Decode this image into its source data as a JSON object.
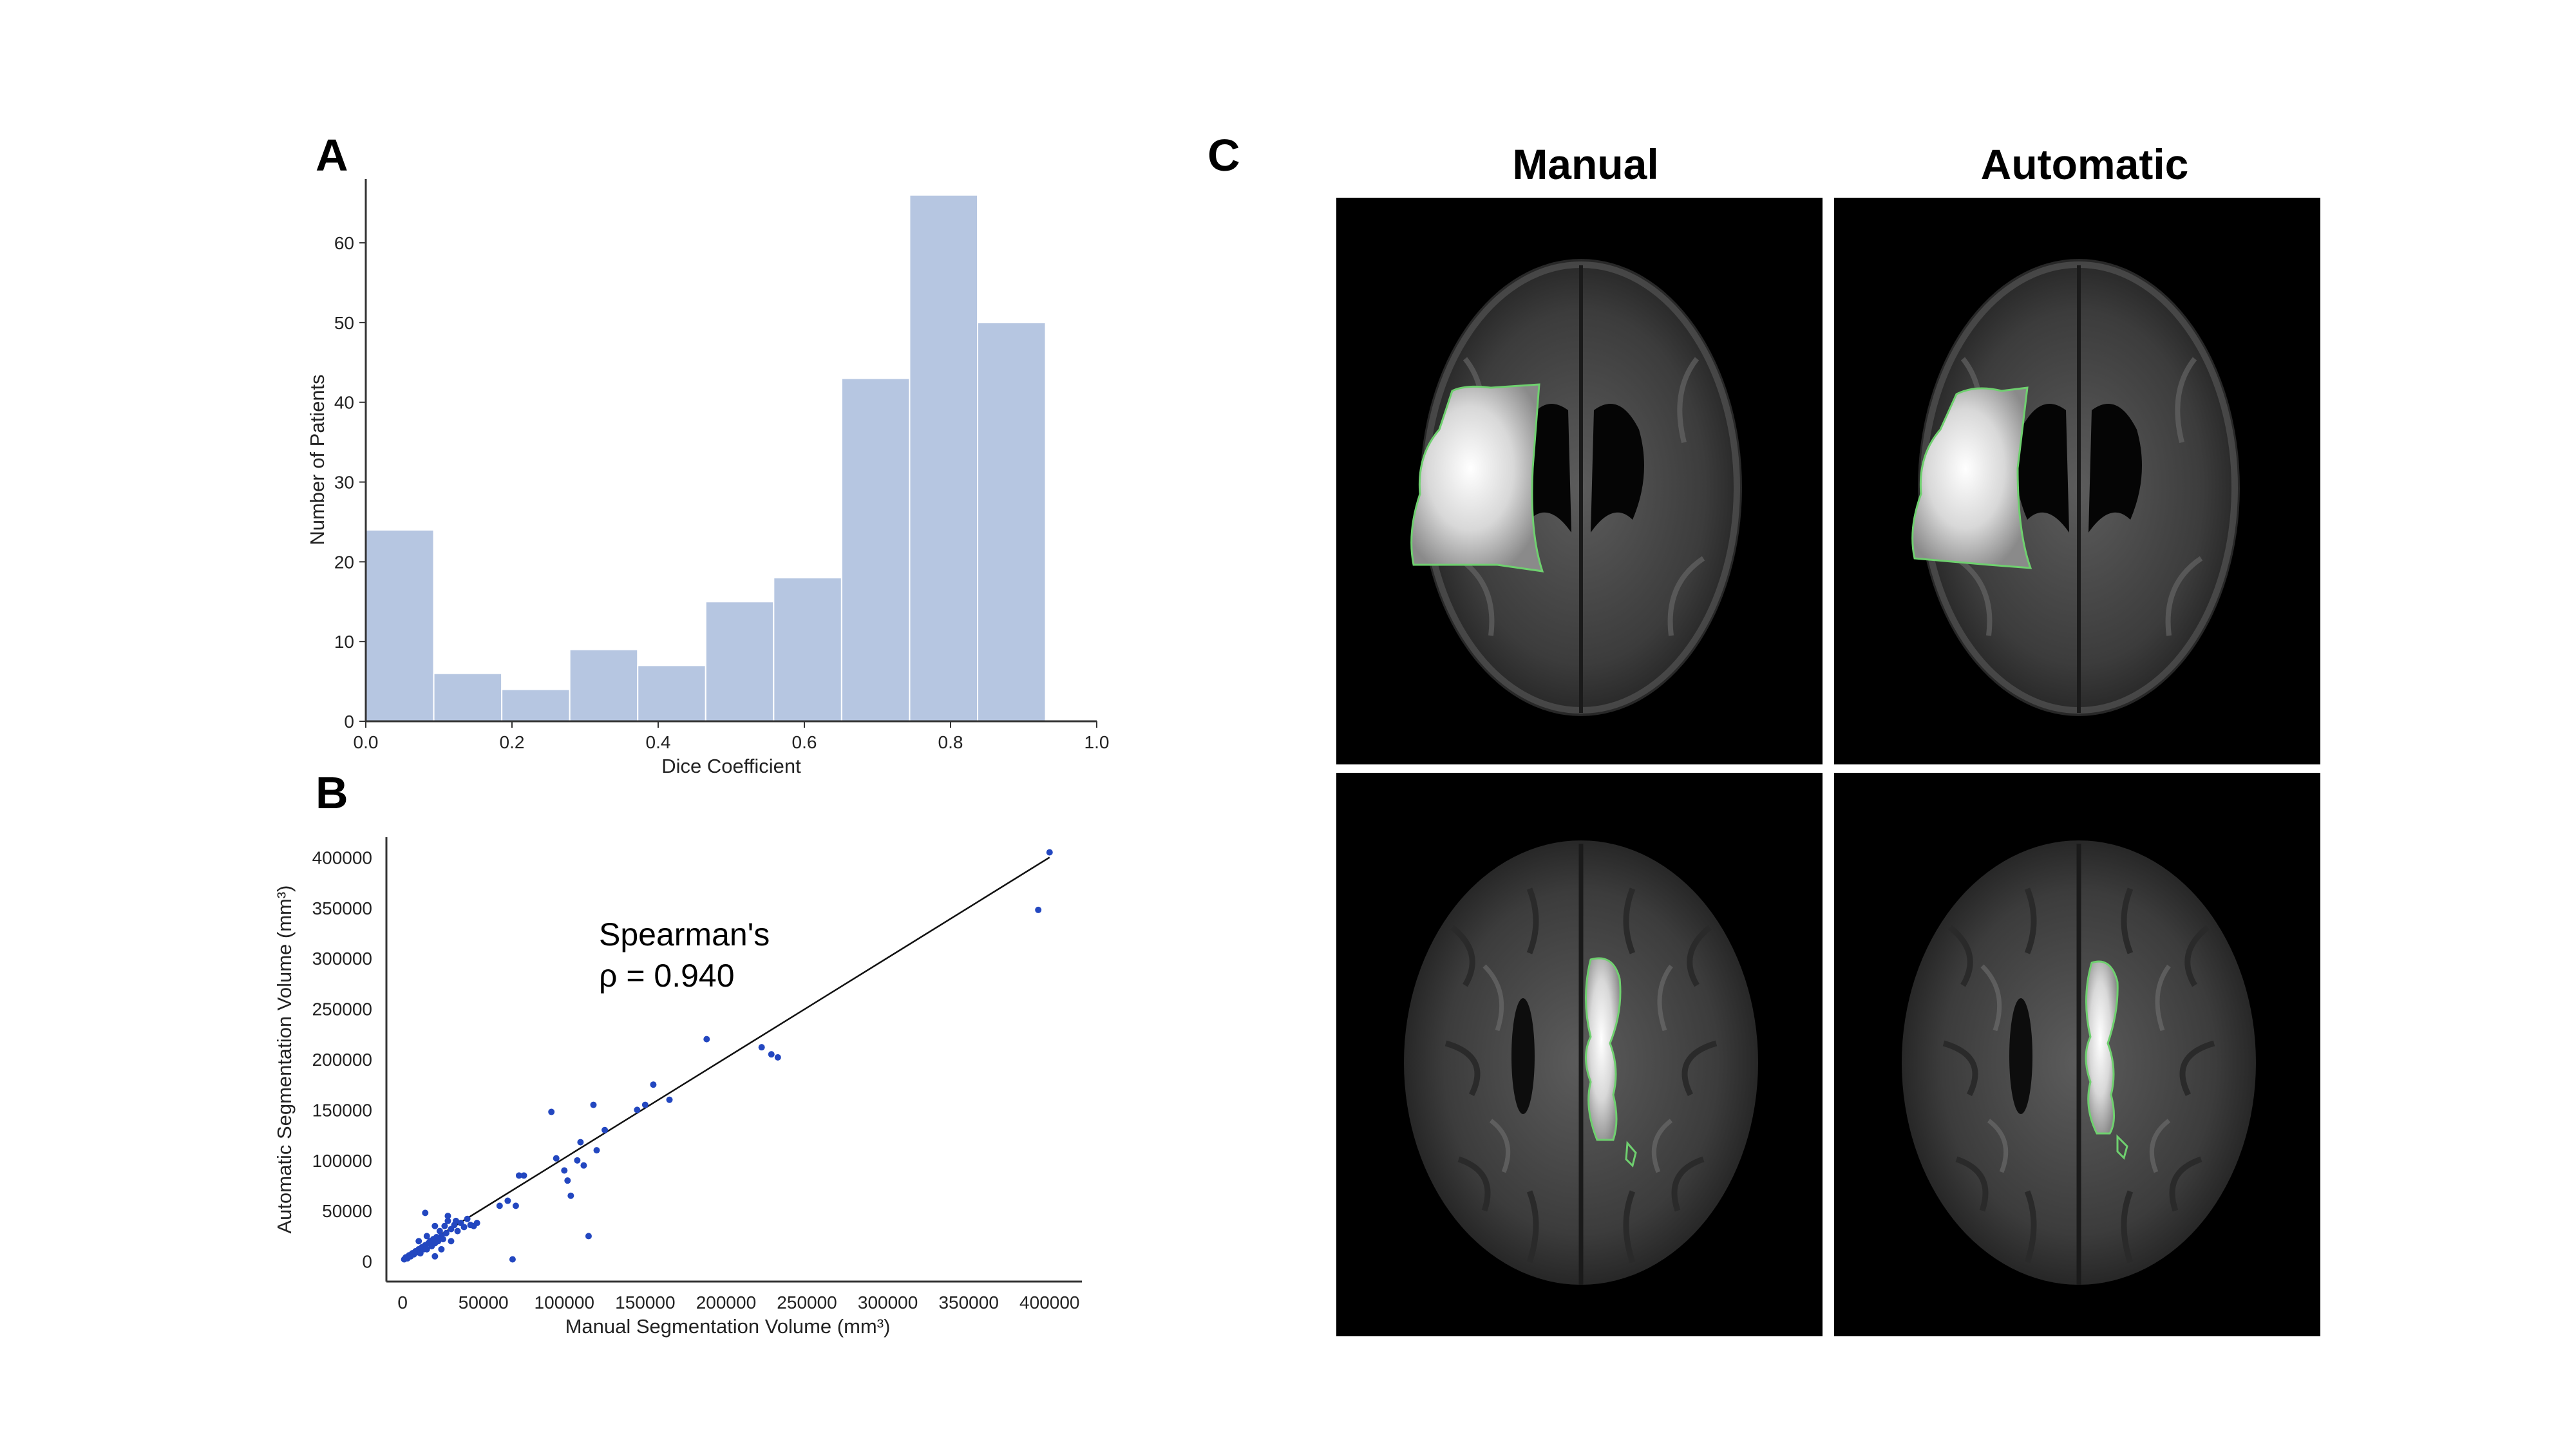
{
  "panels": {
    "a": {
      "letter": "A"
    },
    "b": {
      "letter": "B"
    },
    "c": {
      "letter": "C",
      "col_left": "Manual",
      "col_right": "Automatic"
    }
  },
  "annotation": {
    "line1": "Spearman's",
    "line2": "ρ = 0.940"
  },
  "colors": {
    "bar": "#b6c6e1",
    "scatter": "#2347c0",
    "contour": "#6fd06f",
    "fit": "#111111"
  },
  "icons": {
    "brain_mri": "brain-mri-image"
  },
  "chart_data": [
    {
      "type": "bar",
      "title": "",
      "xlabel": "Dice Coefficient",
      "ylabel": "Number of Patients",
      "xlim": [
        0.0,
        1.0
      ],
      "ylim": [
        0,
        68
      ],
      "xticks": [
        "0.0",
        "0.2",
        "0.4",
        "0.6",
        "0.8",
        "1.0"
      ],
      "yticks": [
        "0",
        "10",
        "20",
        "30",
        "40",
        "50",
        "60"
      ],
      "bin_edges": [
        0.0,
        0.093,
        0.186,
        0.279,
        0.372,
        0.465,
        0.558,
        0.651,
        0.744,
        0.837,
        0.93
      ],
      "values": [
        24,
        6,
        4,
        9,
        7,
        15,
        18,
        43,
        66,
        50
      ],
      "grid": false
    },
    {
      "type": "scatter",
      "title": "",
      "xlabel": "Manual Segmentation Volume (mm³)",
      "ylabel": "Automatic Segmentation Volume (mm³)",
      "xlim": [
        -10000,
        420000
      ],
      "ylim": [
        -20000,
        420000
      ],
      "xticks": [
        "0",
        "50000",
        "100000",
        "150000",
        "200000",
        "250000",
        "300000",
        "350000",
        "400000"
      ],
      "yticks": [
        "0",
        "50000",
        "100000",
        "150000",
        "200000",
        "250000",
        "300000",
        "350000",
        "400000"
      ],
      "fit_line": {
        "x": [
          0,
          400000
        ],
        "y": [
          3000,
          400000
        ]
      },
      "points": [
        [
          1000,
          2000
        ],
        [
          2000,
          4000
        ],
        [
          3000,
          3000
        ],
        [
          4000,
          6000
        ],
        [
          5000,
          5000
        ],
        [
          6000,
          8000
        ],
        [
          7000,
          7000
        ],
        [
          8000,
          10000
        ],
        [
          9000,
          9000
        ],
        [
          10000,
          12000
        ],
        [
          11000,
          8000
        ],
        [
          12000,
          14000
        ],
        [
          13000,
          12000
        ],
        [
          14000,
          16000
        ],
        [
          15000,
          12000
        ],
        [
          16000,
          18000
        ],
        [
          17000,
          20000
        ],
        [
          18000,
          15000
        ],
        [
          19000,
          22000
        ],
        [
          20000,
          18000
        ],
        [
          21000,
          24000
        ],
        [
          22000,
          20000
        ],
        [
          23000,
          30000
        ],
        [
          24000,
          25000
        ],
        [
          25000,
          22000
        ],
        [
          26000,
          35000
        ],
        [
          27000,
          28000
        ],
        [
          28000,
          40000
        ],
        [
          30000,
          32000
        ],
        [
          32000,
          36000
        ],
        [
          34000,
          30000
        ],
        [
          36000,
          38000
        ],
        [
          38000,
          34000
        ],
        [
          40000,
          42000
        ],
        [
          42000,
          36000
        ],
        [
          44000,
          35000
        ],
        [
          46000,
          38000
        ],
        [
          14000,
          48000
        ],
        [
          20000,
          35000
        ],
        [
          28000,
          45000
        ],
        [
          24000,
          12000
        ],
        [
          30000,
          20000
        ],
        [
          20000,
          5000
        ],
        [
          15000,
          25000
        ],
        [
          10000,
          20000
        ],
        [
          33000,
          40000
        ],
        [
          60000,
          55000
        ],
        [
          65000,
          60000
        ],
        [
          70000,
          55000
        ],
        [
          72000,
          85000
        ],
        [
          75000,
          85000
        ],
        [
          68000,
          2000
        ],
        [
          92000,
          148000
        ],
        [
          95000,
          102000
        ],
        [
          100000,
          90000
        ],
        [
          102000,
          80000
        ],
        [
          104000,
          65000
        ],
        [
          108000,
          100000
        ],
        [
          110000,
          118000
        ],
        [
          112000,
          95000
        ],
        [
          118000,
          155000
        ],
        [
          120000,
          110000
        ],
        [
          125000,
          130000
        ],
        [
          115000,
          25000
        ],
        [
          145000,
          150000
        ],
        [
          150000,
          155000
        ],
        [
          155000,
          175000
        ],
        [
          165000,
          160000
        ],
        [
          188000,
          220000
        ],
        [
          222000,
          212000
        ],
        [
          228000,
          205000
        ],
        [
          232000,
          202000
        ],
        [
          393000,
          348000
        ],
        [
          400000,
          405000
        ]
      ]
    }
  ]
}
